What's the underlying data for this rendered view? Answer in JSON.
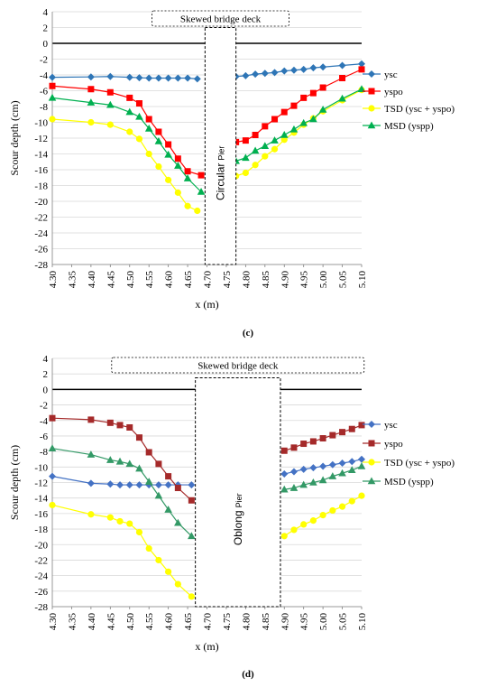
{
  "chart_data": [
    {
      "type": "line",
      "panel_label": "(c)",
      "xlabel": "x (m)",
      "ylabel": "Scour depth (cm)",
      "xlim": [
        4.3,
        5.1
      ],
      "ylim": [
        -28,
        4
      ],
      "x_ticks": [
        "4.30",
        "4.35",
        "4.40",
        "4.45",
        "4.50",
        "4.55",
        "4.60",
        "4.65",
        "4.70",
        "4.75",
        "4.80",
        "4.85",
        "4.90",
        "4.95",
        "5.00",
        "5.05",
        "5.10"
      ],
      "y_ticks": [
        "4",
        "2",
        "0",
        "-2",
        "-4",
        "-6",
        "-8",
        "-10",
        "-12",
        "-14",
        "-16",
        "-18",
        "-20",
        "-22",
        "-24",
        "-26",
        "-28"
      ],
      "grid": true,
      "legend_position": "right",
      "deck_label": "Skewed bridge deck",
      "pier_label_main": "Circular",
      "pier_label_small": "Pier",
      "pier_x": [
        4.695,
        4.775
      ],
      "pier_y": [
        2,
        -28
      ],
      "series": [
        {
          "name": "ysc",
          "color": "#2E75B6",
          "marker": "diamond",
          "segments": [
            {
              "x": [
                4.3,
                4.4,
                4.45,
                4.5,
                4.525,
                4.55,
                4.575,
                4.6,
                4.625,
                4.65,
                4.675
              ],
              "y": [
                -4.3,
                -4.25,
                -4.2,
                -4.3,
                -4.35,
                -4.4,
                -4.4,
                -4.4,
                -4.4,
                -4.4,
                -4.5
              ]
            },
            {
              "x": [
                4.775,
                4.8,
                4.825,
                4.85,
                4.875,
                4.9,
                4.925,
                4.95,
                4.975,
                5.0,
                5.05,
                5.1
              ],
              "y": [
                -4.2,
                -4.1,
                -3.9,
                -3.8,
                -3.7,
                -3.5,
                -3.4,
                -3.3,
                -3.1,
                -3.0,
                -2.8,
                -2.6
              ]
            }
          ]
        },
        {
          "name": "yspo",
          "color": "#FF0000",
          "marker": "square",
          "segments": [
            {
              "x": [
                4.3,
                4.4,
                4.45,
                4.5,
                4.525,
                4.55,
                4.575,
                4.6,
                4.625,
                4.65,
                4.685
              ],
              "y": [
                -5.4,
                -5.8,
                -6.2,
                -6.9,
                -7.6,
                -9.6,
                -11.2,
                -12.8,
                -14.6,
                -16.2,
                -16.7
              ]
            },
            {
              "x": [
                4.775,
                4.8,
                4.825,
                4.85,
                4.875,
                4.9,
                4.925,
                4.95,
                4.975,
                5.0,
                5.05,
                5.1
              ],
              "y": [
                -12.5,
                -12.3,
                -11.6,
                -10.5,
                -9.6,
                -8.7,
                -7.9,
                -6.9,
                -6.3,
                -5.6,
                -4.4,
                -3.3
              ]
            }
          ]
        },
        {
          "name": "TSD (ysc + yspo)",
          "color": "#FFFF00",
          "marker": "circle",
          "segments": [
            {
              "x": [
                4.3,
                4.4,
                4.45,
                4.5,
                4.525,
                4.55,
                4.575,
                4.6,
                4.625,
                4.65,
                4.675
              ],
              "y": [
                -9.6,
                -10.0,
                -10.3,
                -11.2,
                -12.1,
                -14.0,
                -15.6,
                -17.3,
                -18.9,
                -20.6,
                -21.2
              ]
            },
            {
              "x": [
                4.775,
                4.8,
                4.825,
                4.85,
                4.875,
                4.9,
                4.925,
                4.95,
                4.975,
                5.0,
                5.05,
                5.1
              ],
              "y": [
                -16.8,
                -16.4,
                -15.4,
                -14.3,
                -13.4,
                -12.2,
                -11.3,
                -10.3,
                -9.5,
                -8.6,
                -7.2,
                -5.9
              ]
            }
          ]
        },
        {
          "name": "MSD (yspp)",
          "color": "#00B050",
          "marker": "triangle",
          "segments": [
            {
              "x": [
                4.3,
                4.4,
                4.45,
                4.5,
                4.525,
                4.55,
                4.575,
                4.6,
                4.625,
                4.65,
                4.685
              ],
              "y": [
                -6.9,
                -7.5,
                -7.8,
                -8.7,
                -9.3,
                -10.8,
                -12.4,
                -14.1,
                -15.5,
                -17.1,
                -18.8
              ]
            },
            {
              "x": [
                4.775,
                4.8,
                4.825,
                4.85,
                4.875,
                4.9,
                4.925,
                4.95,
                4.975,
                5.0,
                5.05,
                5.1
              ],
              "y": [
                -14.9,
                -14.5,
                -13.6,
                -13.0,
                -12.3,
                -11.6,
                -10.9,
                -10.1,
                -9.6,
                -8.4,
                -7.0,
                -5.8
              ]
            }
          ]
        }
      ]
    },
    {
      "type": "line",
      "panel_label": "(d)",
      "xlabel": "x (m)",
      "ylabel": "Scour depth (cm)",
      "xlim": [
        4.3,
        5.1
      ],
      "ylim": [
        -28,
        4
      ],
      "x_ticks": [
        "4.30",
        "4.35",
        "4.40",
        "4.45",
        "4.50",
        "4.55",
        "4.60",
        "4.65",
        "4.70",
        "4.75",
        "4.80",
        "4.85",
        "4.90",
        "4.95",
        "5.00",
        "5.05",
        "5.10"
      ],
      "y_ticks": [
        "4",
        "2",
        "0",
        "-2",
        "-4",
        "-6",
        "-8",
        "-10",
        "-12",
        "-14",
        "-16",
        "-18",
        "-20",
        "-22",
        "-24",
        "-26",
        "-28"
      ],
      "grid": true,
      "legend_position": "right",
      "deck_label": "Skewed bridge deck",
      "pier_label_main": "Oblong",
      "pier_label_small": "Pier",
      "pier_x": [
        4.67,
        4.89
      ],
      "pier_y": [
        1.5,
        -28
      ],
      "series": [
        {
          "name": "ysc",
          "color": "#4472C4",
          "marker": "diamond",
          "segments": [
            {
              "x": [
                4.3,
                4.4,
                4.45,
                4.475,
                4.5,
                4.525,
                4.55,
                4.575,
                4.6,
                4.625,
                4.66
              ],
              "y": [
                -11.2,
                -12.1,
                -12.2,
                -12.3,
                -12.3,
                -12.3,
                -12.3,
                -12.3,
                -12.3,
                -12.3,
                -12.3
              ]
            },
            {
              "x": [
                4.9,
                4.925,
                4.95,
                4.975,
                5.0,
                5.025,
                5.05,
                5.075,
                5.1
              ],
              "y": [
                -10.9,
                -10.6,
                -10.3,
                -10.1,
                -9.9,
                -9.7,
                -9.5,
                -9.3,
                -9.0
              ]
            }
          ]
        },
        {
          "name": "yspo",
          "color": "#A52A2A",
          "marker": "square",
          "segments": [
            {
              "x": [
                4.3,
                4.4,
                4.45,
                4.475,
                4.5,
                4.525,
                4.55,
                4.575,
                4.6,
                4.625,
                4.66
              ],
              "y": [
                -3.7,
                -3.9,
                -4.3,
                -4.6,
                -4.9,
                -6.2,
                -8.1,
                -9.6,
                -11.2,
                -12.7,
                -14.3
              ]
            },
            {
              "x": [
                4.9,
                4.925,
                4.95,
                4.975,
                5.0,
                5.025,
                5.05,
                5.075,
                5.1
              ],
              "y": [
                -7.9,
                -7.5,
                -7.0,
                -6.7,
                -6.3,
                -5.9,
                -5.5,
                -5.1,
                -4.6
              ]
            }
          ]
        },
        {
          "name": "TSD (ysc + yspo)",
          "color": "#FFFF00",
          "marker": "circle",
          "segments": [
            {
              "x": [
                4.3,
                4.4,
                4.45,
                4.475,
                4.5,
                4.525,
                4.55,
                4.575,
                4.6,
                4.625,
                4.66
              ],
              "y": [
                -14.9,
                -16.1,
                -16.5,
                -17.0,
                -17.3,
                -18.4,
                -20.5,
                -22.0,
                -23.5,
                -25.1,
                -26.7
              ]
            },
            {
              "x": [
                4.9,
                4.925,
                4.95,
                4.975,
                5.0,
                5.025,
                5.05,
                5.075,
                5.1
              ],
              "y": [
                -18.9,
                -18.1,
                -17.4,
                -16.9,
                -16.2,
                -15.6,
                -15.1,
                -14.4,
                -13.7
              ]
            }
          ]
        },
        {
          "name": "MSD (yspp)",
          "color": "#339966",
          "marker": "triangle",
          "segments": [
            {
              "x": [
                4.3,
                4.4,
                4.45,
                4.475,
                4.5,
                4.525,
                4.55,
                4.575,
                4.6,
                4.625,
                4.66
              ],
              "y": [
                -7.6,
                -8.4,
                -9.1,
                -9.3,
                -9.6,
                -10.2,
                -11.9,
                -13.7,
                -15.5,
                -17.2,
                -18.9
              ]
            },
            {
              "x": [
                4.9,
                4.925,
                4.95,
                4.975,
                5.0,
                5.025,
                5.05,
                5.075,
                5.1
              ],
              "y": [
                -12.9,
                -12.7,
                -12.3,
                -12.0,
                -11.7,
                -11.2,
                -10.8,
                -10.4,
                -9.9
              ]
            }
          ]
        }
      ]
    }
  ]
}
